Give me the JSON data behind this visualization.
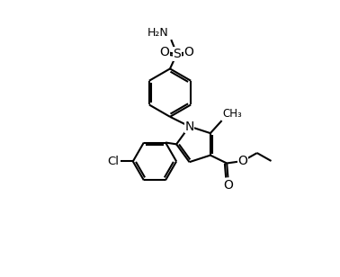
{
  "background_color": "#ffffff",
  "line_color": "#000000",
  "line_width": 1.5,
  "fig_width": 3.78,
  "fig_height": 3.08,
  "dpi": 100,
  "xlim": [
    -1,
    11
  ],
  "ylim": [
    -1,
    11
  ]
}
